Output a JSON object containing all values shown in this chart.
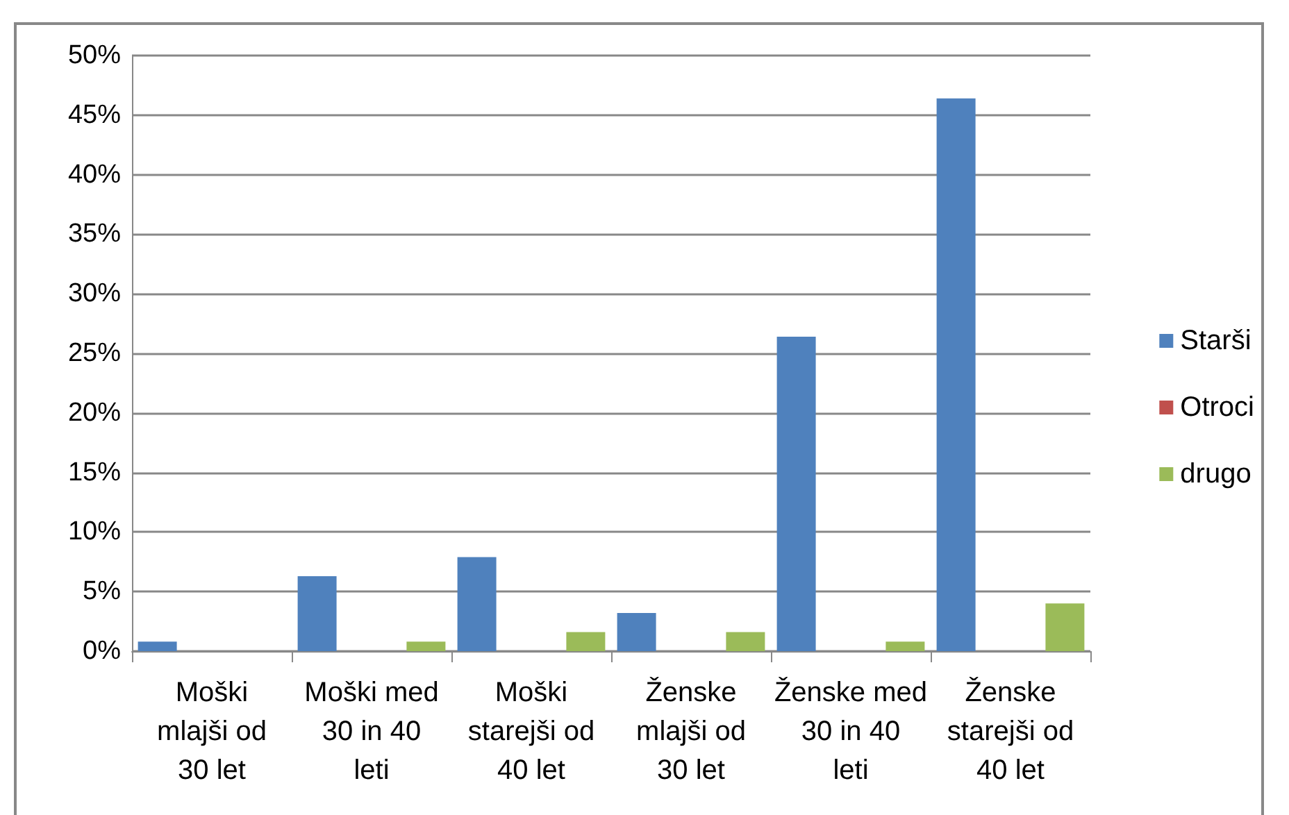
{
  "chart_data": {
    "type": "bar",
    "categories": [
      "Moški mlajši od 30 let",
      "Moški med 30 in 40 leti",
      "Moški starejši od 40 let",
      "Ženske mlajši od 30 let",
      "Ženske med 30 in 40 leti",
      "Ženske starejši od 40 let"
    ],
    "series": [
      {
        "name": "Starši",
        "color": "#4f81bd",
        "values": [
          0.8,
          6.3,
          7.9,
          3.2,
          26.4,
          46.4
        ]
      },
      {
        "name": "Otroci",
        "color": "#c0504d",
        "values": [
          0,
          0,
          0,
          0,
          0,
          0
        ]
      },
      {
        "name": "drugo",
        "color": "#9bbb59",
        "values": [
          0,
          0.8,
          1.6,
          1.6,
          0.8,
          4.0
        ]
      }
    ],
    "ylim": [
      0,
      50
    ],
    "yticks": [
      {
        "value": 0,
        "label": "0%"
      },
      {
        "value": 5,
        "label": "5%"
      },
      {
        "value": 10,
        "label": "10%"
      },
      {
        "value": 15,
        "label": "15%"
      },
      {
        "value": 20,
        "label": "20%"
      },
      {
        "value": 25,
        "label": "25%"
      },
      {
        "value": 30,
        "label": "30%"
      },
      {
        "value": 35,
        "label": "35%"
      },
      {
        "value": 40,
        "label": "40%"
      },
      {
        "value": 45,
        "label": "45%"
      },
      {
        "value": 50,
        "label": "50%"
      }
    ],
    "grid": "y",
    "legend": "right"
  }
}
